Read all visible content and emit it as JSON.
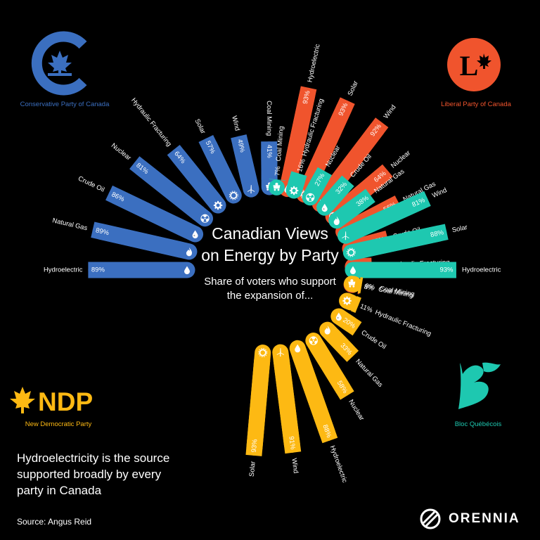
{
  "header": {
    "title_line1": "Canadian Views",
    "title_line2": "on Energy by Party",
    "subtitle_line1": "Share of voters who support",
    "subtitle_line2": "the expansion of..."
  },
  "parties": {
    "conservative": {
      "name": "Conservative Party of Canada",
      "color": "#3b6fc0"
    },
    "liberal": {
      "name": "Liberal Party of Canada",
      "color": "#f0542d",
      "logo_letter": "L"
    },
    "ndp": {
      "name": "New Democratic Party",
      "color": "#fdb913",
      "logo_text": "NDP"
    },
    "bloc": {
      "name": "Bloc Québécois",
      "color": "#1ec8b0"
    }
  },
  "footer": {
    "note": "Hydroelectricity is the source supported broadly by every party in Canada",
    "source": "Source: Angus Reid",
    "brand": "ORENNIA"
  },
  "chart_data": {
    "type": "bar",
    "title": "Canadian Views on Energy by Party",
    "subtitle": "Share of voters who support the expansion of...",
    "unit": "%",
    "series": [
      {
        "name": "Conservative Party of Canada",
        "color": "#3b6fc0",
        "categories": [
          "Hydroelectric",
          "Natural Gas",
          "Crude Oil",
          "Nuclear",
          "Hydraulic Fracturing",
          "Solar",
          "Wind",
          "Coal Mining"
        ],
        "icons": [
          "water-drop-icon",
          "flame-icon",
          "oil-drop-icon",
          "radiation-icon",
          "gear-icon",
          "sun-icon",
          "wind-turbine-icon",
          "mine-cart-icon"
        ],
        "values": [
          89,
          89,
          86,
          81,
          64,
          57,
          49,
          41
        ]
      },
      {
        "name": "Liberal Party of Canada",
        "color": "#f0542d",
        "categories": [
          "Hydroelectric",
          "Solar",
          "Wind",
          "Nuclear",
          "Natural Gas",
          "Crude Oil",
          "Hydraulic Fracturing",
          "Coal Mining"
        ],
        "icons": [
          "water-drop-icon",
          "sun-icon",
          "wind-turbine-icon",
          "radiation-icon",
          "flame-icon",
          "oil-drop-icon",
          "gear-icon",
          "mine-cart-icon"
        ],
        "values": [
          93,
          93,
          92,
          64,
          56,
          35,
          17,
          8
        ]
      },
      {
        "name": "Bloc Québécois",
        "color": "#1ec8b0",
        "categories": [
          "Hydroelectric",
          "Solar",
          "Wind",
          "Natural Gas",
          "Crude Oil",
          "Nuclear",
          "Hydraulic Fracturing",
          "Coal Mining"
        ],
        "icons": [
          "water-drop-icon",
          "sun-icon",
          "wind-turbine-icon",
          "flame-icon",
          "oil-drop-icon",
          "radiation-icon",
          "gear-icon",
          "mine-cart-icon"
        ],
        "values": [
          93,
          88,
          81,
          38,
          32,
          27,
          16,
          7
        ]
      },
      {
        "name": "New Democratic Party",
        "color": "#fdb913",
        "categories": [
          "Solar",
          "Wind",
          "Hydroelectric",
          "Nuclear",
          "Natural Gas",
          "Crude Oil",
          "Hydraulic Fracturing",
          "Coal Mining"
        ],
        "icons": [
          "sun-icon",
          "wind-turbine-icon",
          "water-drop-icon",
          "radiation-icon",
          "flame-icon",
          "oil-drop-icon",
          "gear-icon",
          "mine-cart-icon"
        ],
        "values": [
          93,
          91,
          88,
          58,
          33,
          20,
          11,
          9
        ]
      }
    ]
  }
}
